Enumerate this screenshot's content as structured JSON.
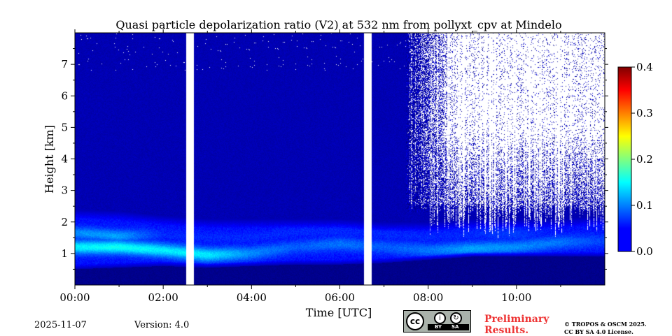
{
  "chart_data": {
    "type": "heatmap",
    "title": "Quasi particle depolarization ratio (V2) at 532 nm from pollyxt_cpv at Mindelo",
    "xlabel": "Time [UTC]",
    "ylabel": "Height [km]",
    "x_tick_labels": [
      "00:00",
      "02:00",
      "04:00",
      "06:00",
      "08:00",
      "10:00"
    ],
    "x_ticks_hours": [
      0,
      2,
      4,
      6,
      8,
      10
    ],
    "xlim_hours": [
      0,
      12
    ],
    "y_tick_labels": [
      "1",
      "2",
      "3",
      "4",
      "5",
      "6",
      "7"
    ],
    "y_ticks_km": [
      1,
      2,
      3,
      4,
      5,
      6,
      7
    ],
    "ylim_km": [
      0,
      8
    ],
    "colorbar": {
      "min": 0.0,
      "max": 0.4,
      "tick_values": [
        0.0,
        0.1,
        0.2,
        0.3,
        0.4
      ],
      "tick_labels": [
        "0.0",
        "0.1",
        "0.2",
        "0.3",
        "0.4"
      ],
      "colormap": "jet"
    },
    "data_gaps_hours": [
      [
        2.52,
        2.7
      ],
      [
        6.55,
        6.72
      ]
    ],
    "background_value": 0.02,
    "aerosol_layer": [
      {
        "t": 0.0,
        "bottom_km": 0.5,
        "top_km": 2.4,
        "peak_km": 1.2,
        "peak_value": 0.17,
        "secondary_km": 1.65,
        "secondary_value": 0.13
      },
      {
        "t": 1.0,
        "bottom_km": 0.55,
        "top_km": 2.35,
        "peak_km": 1.2,
        "peak_value": 0.18,
        "secondary_km": 1.55,
        "secondary_value": 0.14
      },
      {
        "t": 2.0,
        "bottom_km": 0.6,
        "top_km": 2.2,
        "peak_km": 1.1,
        "peak_value": 0.17,
        "secondary_km": 1.6,
        "secondary_value": 0.09
      },
      {
        "t": 3.0,
        "bottom_km": 0.55,
        "top_km": 2.1,
        "peak_km": 0.95,
        "peak_value": 0.17,
        "secondary_km": 1.5,
        "secondary_value": 0.09
      },
      {
        "t": 4.0,
        "bottom_km": 0.6,
        "top_km": 2.1,
        "peak_km": 1.0,
        "peak_value": 0.13,
        "secondary_km": 1.5,
        "secondary_value": 0.09
      },
      {
        "t": 5.0,
        "bottom_km": 0.65,
        "top_km": 2.1,
        "peak_km": 1.2,
        "peak_value": 0.11,
        "secondary_km": 1.7,
        "secondary_value": 0.09
      },
      {
        "t": 6.0,
        "bottom_km": 0.65,
        "top_km": 2.1,
        "peak_km": 1.3,
        "peak_value": 0.12,
        "secondary_km": 1.7,
        "secondary_value": 0.09
      },
      {
        "t": 7.0,
        "bottom_km": 0.7,
        "top_km": 2.0,
        "peak_km": 1.2,
        "peak_value": 0.11,
        "secondary_km": 1.6,
        "secondary_value": 0.09
      },
      {
        "t": 8.0,
        "bottom_km": 0.8,
        "top_km": 2.0,
        "peak_km": 1.1,
        "peak_value": 0.12,
        "secondary_km": 1.5,
        "secondary_value": 0.09
      },
      {
        "t": 9.0,
        "bottom_km": 0.9,
        "top_km": 2.1,
        "peak_km": 1.15,
        "peak_value": 0.14,
        "secondary_km": 1.6,
        "secondary_value": 0.09
      },
      {
        "t": 10.0,
        "bottom_km": 0.9,
        "top_km": 2.1,
        "peak_km": 1.2,
        "peak_value": 0.13,
        "secondary_km": 1.6,
        "secondary_value": 0.1
      },
      {
        "t": 11.0,
        "bottom_km": 0.9,
        "top_km": 2.1,
        "peak_km": 1.35,
        "peak_value": 0.12,
        "secondary_km": 1.6,
        "secondary_value": 0.08
      },
      {
        "t": 12.0,
        "bottom_km": 0.9,
        "top_km": 2.2,
        "peak_km": 1.4,
        "peak_value": 0.1,
        "secondary_km": 1.7,
        "secondary_value": 0.08
      }
    ],
    "masked_noise_region": {
      "start_hours": 7.5,
      "min_height_km": 2.3,
      "max_height_km": 8.0
    }
  },
  "footer": {
    "date": "2025-11-07",
    "version": "Version: 4.0",
    "preliminary": [
      "Preliminary",
      "Results."
    ],
    "copyright": [
      "© TROPOS & OSCM 2025.",
      "CC BY SA 4.0 License."
    ],
    "license_badge": {
      "cc": "cc",
      "by": "BY",
      "sa": "SA"
    }
  }
}
